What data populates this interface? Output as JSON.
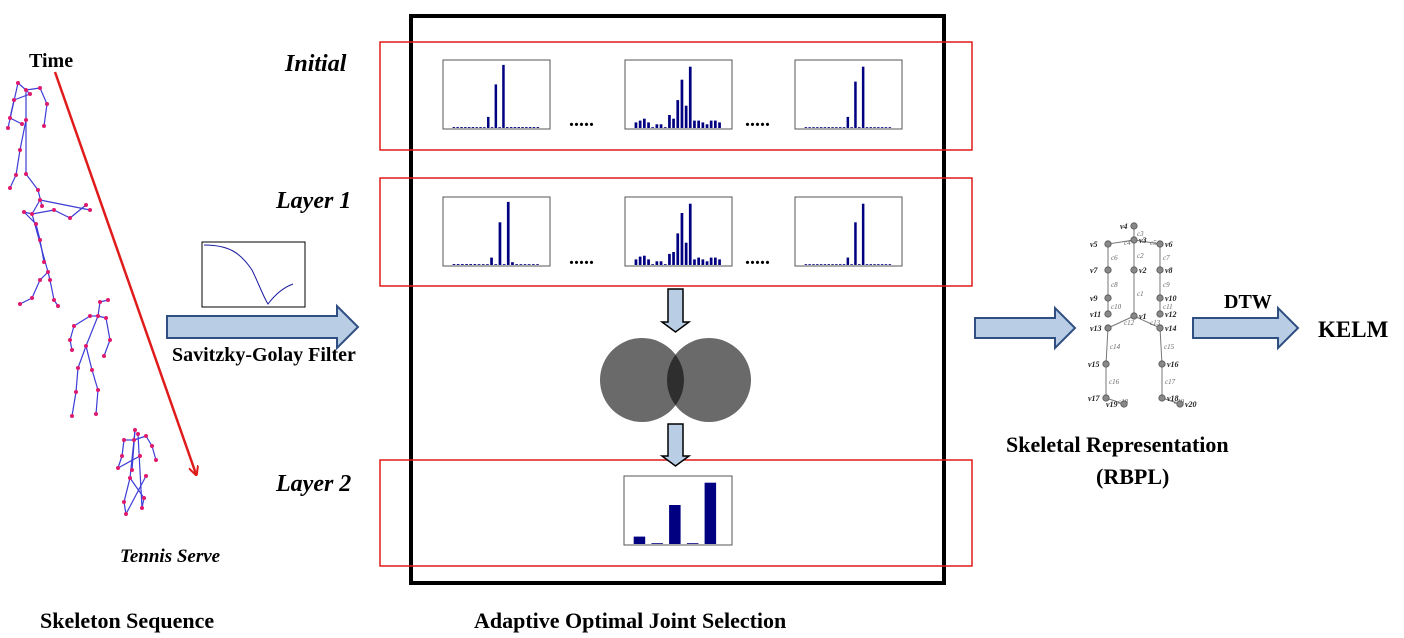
{
  "skeleton": {
    "time_label": "Time",
    "action_label": "Tennis Serve",
    "caption": "Skeleton Sequence"
  },
  "filter": {
    "caption": "Savitzky-Golay Filter"
  },
  "selection": {
    "caption": "Adaptive Optimal Joint Selection",
    "rows": [
      {
        "label": "Initial"
      },
      {
        "label": "Layer 1"
      },
      {
        "label": "Layer 2"
      }
    ],
    "ellipsis": ".....",
    "histograms": {
      "h_a": [
        1,
        1,
        1,
        1,
        1,
        1,
        0,
        1,
        0,
        12,
        0,
        47,
        0,
        68,
        1,
        1,
        1,
        1,
        1,
        1,
        1,
        1,
        1
      ],
      "h_b": [
        6,
        8,
        10,
        6,
        0,
        4,
        4,
        0,
        14,
        10,
        30,
        52,
        24,
        66,
        8,
        8,
        6,
        4,
        8,
        8,
        6
      ],
      "h_c": [
        0,
        0,
        0,
        0,
        0,
        0,
        0,
        0,
        0,
        0,
        0,
        12,
        0,
        50,
        0,
        66,
        0,
        0,
        0,
        0,
        0,
        0,
        0
      ],
      "h_d": [
        1,
        1,
        1,
        1,
        1,
        1,
        0,
        0,
        0,
        8,
        0,
        46,
        0,
        68,
        3,
        0,
        0,
        0,
        0,
        0,
        0
      ],
      "h_e": [
        6,
        9,
        10,
        6,
        0,
        4,
        4,
        0,
        12,
        14,
        34,
        56,
        24,
        66,
        6,
        8,
        6,
        4,
        8,
        8,
        6
      ],
      "h_f": [
        0,
        0,
        0,
        0,
        0,
        0,
        0,
        0,
        0,
        0,
        0,
        8,
        0,
        46,
        0,
        66,
        0,
        0,
        0,
        0,
        0,
        0,
        0
      ],
      "h_g": [
        8,
        0,
        42,
        0,
        66
      ]
    }
  },
  "representation": {
    "caption_line1": "Skeletal Representation",
    "caption_line2": "(RBPL)",
    "joints": [
      "v4",
      "v3",
      "v5",
      "v6",
      "v7",
      "v2",
      "v8",
      "v9",
      "v10",
      "v11",
      "v12",
      "v1",
      "v13",
      "v14",
      "v15",
      "v16",
      "v17",
      "v18",
      "v19",
      "v20"
    ],
    "edges": [
      "c3",
      "c4",
      "c5",
      "c6",
      "c2",
      "c7",
      "c8",
      "c9",
      "c10",
      "c11",
      "c1",
      "c12",
      "c13",
      "c14",
      "c15",
      "c16",
      "c17",
      "c18",
      "c19"
    ]
  },
  "outputs": {
    "dtw": "DTW",
    "kelm": "KELM"
  },
  "colors": {
    "red": "#e01b1b",
    "bar": "#000080",
    "skeleton_line": "#3c3cd6",
    "skeleton_joint": "#e0196e",
    "arrow_fill": "#b9cde5",
    "venn": "#6a6a6a",
    "venn_overlap": "#2e2e2e"
  }
}
